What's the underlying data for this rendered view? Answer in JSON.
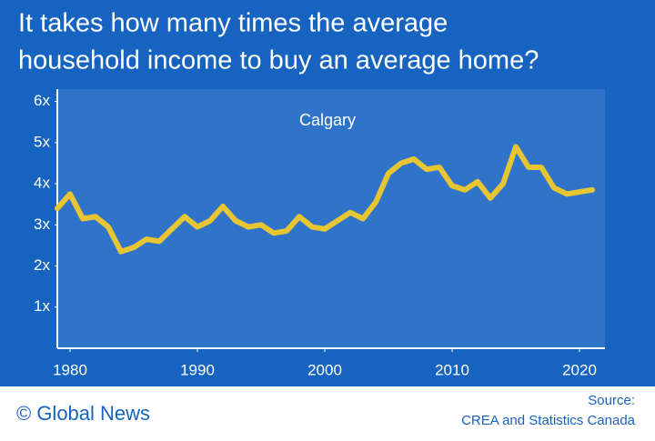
{
  "chart_data": {
    "type": "line",
    "title": [
      "It takes how many times the average",
      "household income to buy an average home?"
    ],
    "annotation": "Calgary",
    "x": [
      1979,
      1980,
      1981,
      1982,
      1983,
      1984,
      1985,
      1986,
      1987,
      1988,
      1989,
      1990,
      1991,
      1992,
      1993,
      1994,
      1995,
      1996,
      1997,
      1998,
      1999,
      2000,
      2001,
      2002,
      2003,
      2004,
      2005,
      2006,
      2007,
      2008,
      2009,
      2010,
      2011,
      2012,
      2013,
      2014,
      2015,
      2016,
      2017,
      2018,
      2019,
      2020,
      2021
    ],
    "values": [
      3.4,
      3.75,
      3.15,
      3.2,
      2.95,
      2.35,
      2.45,
      2.65,
      2.6,
      2.9,
      3.2,
      2.95,
      3.1,
      3.45,
      3.1,
      2.95,
      3.0,
      2.8,
      2.85,
      3.2,
      2.95,
      2.9,
      3.1,
      3.3,
      3.15,
      3.55,
      4.25,
      4.5,
      4.6,
      4.35,
      4.4,
      3.95,
      3.85,
      4.05,
      3.65,
      4.0,
      4.9,
      4.4,
      4.4,
      3.9,
      3.75,
      3.8,
      3.85
    ],
    "color": "#e8c532",
    "xlim": [
      1979,
      2022
    ],
    "xticks": [
      1980,
      1990,
      2000,
      2010,
      2020
    ],
    "ylim": [
      0,
      6.3
    ],
    "yticks": [
      {
        "value": 1,
        "label": "1x"
      },
      {
        "value": 2,
        "label": "2x"
      },
      {
        "value": 3,
        "label": "3x"
      },
      {
        "value": 4,
        "label": "4x"
      },
      {
        "value": 5,
        "label": "5x"
      },
      {
        "value": 6,
        "label": "6x"
      }
    ]
  },
  "footer": {
    "brand": "© Global News",
    "source": [
      "Source:",
      "CREA and Statistics Canada"
    ]
  }
}
